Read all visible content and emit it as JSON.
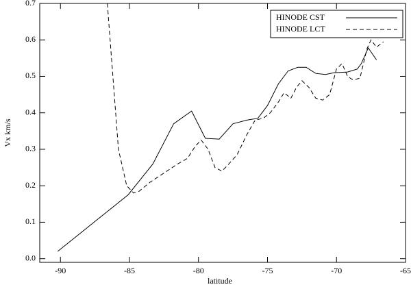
{
  "chart_data": {
    "type": "line",
    "x_label": "latitude",
    "y_label": "Vx km/s",
    "xlim": [
      -91.5,
      -65
    ],
    "ylim": [
      -0.01,
      0.7
    ],
    "xticks": [
      -90,
      -85,
      -80,
      -75,
      -70,
      -65
    ],
    "yticks": [
      {
        "value": 0,
        "label": "0.0"
      },
      0.1,
      0.2,
      0.3,
      0.4,
      0.5,
      0.6,
      0.7
    ],
    "legend": "upper right",
    "series": [
      {
        "name": "HINODE CST",
        "color": "#000000",
        "style": "solid",
        "x": [
          -90.2,
          -85.1,
          -83.3,
          -81.8,
          -80.5,
          -79.5,
          -78.5,
          -77.5,
          -76.5,
          -75.7,
          -75.0,
          -74.2,
          -73.5,
          -72.8,
          -72.2,
          -71.5,
          -70.8,
          -70.2,
          -69.2,
          -68.5,
          -68.2,
          -67.7,
          -67.1
        ],
        "values": [
          0.02,
          0.175,
          0.26,
          0.37,
          0.405,
          0.33,
          0.328,
          0.37,
          0.38,
          0.385,
          0.42,
          0.48,
          0.515,
          0.525,
          0.525,
          0.508,
          0.505,
          0.51,
          0.512,
          0.52,
          0.535,
          0.578,
          0.545
        ]
      },
      {
        "name": "HINODE LCT",
        "color": "#000000",
        "style": "dashed",
        "x": [
          -86.6,
          -86.2,
          -85.8,
          -85.2,
          -84.7,
          -84.3,
          -83.5,
          -82.5,
          -81.5,
          -80.8,
          -80.2,
          -79.8,
          -79.3,
          -78.8,
          -78.3,
          -77.8,
          -77.2,
          -76.5,
          -75.9,
          -75.3,
          -74.8,
          -74.2,
          -73.8,
          -73.3,
          -72.9,
          -72.5,
          -72.0,
          -71.5,
          -71.0,
          -70.5,
          -70.0,
          -69.6,
          -69.2,
          -68.8,
          -68.3,
          -67.8,
          -67.5,
          -67.1,
          -66.6
        ],
        "values": [
          0.7,
          0.5,
          0.3,
          0.2,
          0.18,
          0.185,
          0.21,
          0.235,
          0.26,
          0.275,
          0.31,
          0.325,
          0.3,
          0.25,
          0.24,
          0.26,
          0.285,
          0.34,
          0.38,
          0.385,
          0.4,
          0.43,
          0.455,
          0.44,
          0.47,
          0.488,
          0.47,
          0.44,
          0.435,
          0.45,
          0.52,
          0.535,
          0.5,
          0.49,
          0.495,
          0.575,
          0.6,
          0.58,
          0.595
        ]
      }
    ]
  }
}
